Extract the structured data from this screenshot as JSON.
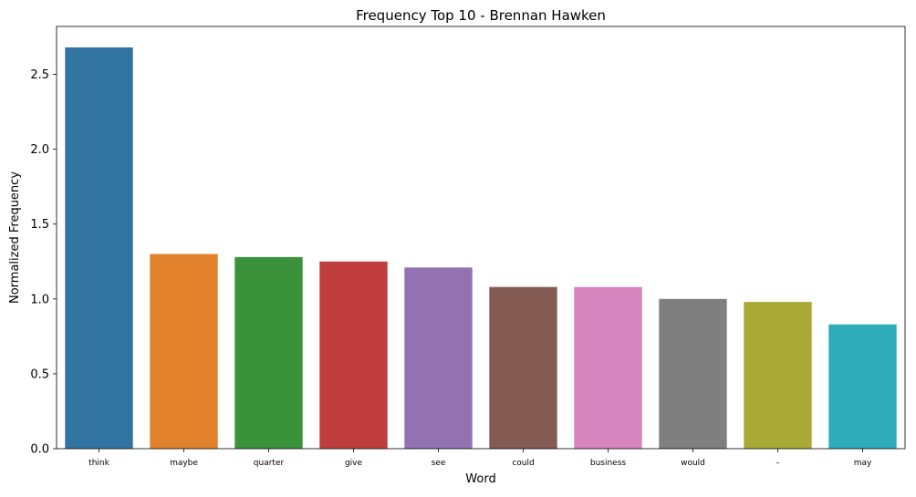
{
  "chart_data": {
    "type": "bar",
    "title": "Frequency Top 10 - Brennan Hawken",
    "xlabel": "Word",
    "ylabel": "Normalized Frequency",
    "categories": [
      "think",
      "maybe",
      "quarter",
      "give",
      "see",
      "could",
      "business",
      "would",
      "–",
      "may"
    ],
    "values": [
      2.68,
      1.3,
      1.28,
      1.25,
      1.21,
      1.08,
      1.08,
      1.0,
      0.98,
      0.83
    ],
    "colors": [
      "#3274a1",
      "#e1812c",
      "#3a923a",
      "#c03d3e",
      "#9372b2",
      "#845b53",
      "#d684bd",
      "#7f7f7f",
      "#a9aa35",
      "#2eabb8"
    ],
    "ylim": [
      0,
      2.82
    ],
    "yticks": [
      0.0,
      0.5,
      1.0,
      1.5,
      2.0,
      2.5
    ],
    "ytick_labels": [
      "0.0",
      "0.5",
      "1.0",
      "1.5",
      "2.0",
      "2.5"
    ],
    "grid": false,
    "legend": "none"
  }
}
